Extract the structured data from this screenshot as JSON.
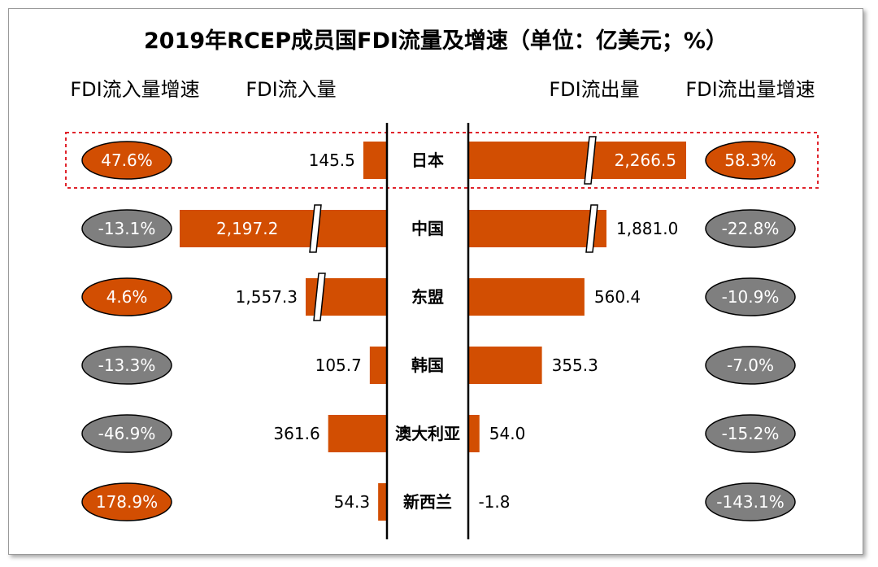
{
  "chart_data": {
    "type": "bar",
    "title": "2019年RCEP成员国FDI流量及增速（单位：亿美元；%）",
    "column_headers": {
      "inflow_growth": "FDI流入量增速",
      "inflow": "FDI流入量",
      "outflow": "FDI流出量",
      "outflow_growth": "FDI流出量增速"
    },
    "categories": [
      "日本",
      "中国",
      "东盟",
      "韩国",
      "澳大利亚",
      "新西兰"
    ],
    "series": [
      {
        "name": "FDI流入量",
        "values": [
          145.5,
          2197.2,
          1557.3,
          105.7,
          361.6,
          54.3
        ],
        "labels": [
          "145.5",
          "2,197.2",
          "1,557.3",
          "105.7",
          "361.6",
          "54.3"
        ],
        "axis_break": [
          false,
          true,
          true,
          false,
          false,
          false
        ]
      },
      {
        "name": "FDI流出量",
        "values": [
          2266.5,
          1881.0,
          560.4,
          355.3,
          54.0,
          -1.8
        ],
        "labels": [
          "2,266.5",
          "1,881.0",
          "560.4",
          "355.3",
          "54.0",
          "-1.8"
        ],
        "axis_break": [
          true,
          true,
          false,
          false,
          false,
          false
        ]
      },
      {
        "name": "FDI流入量增速",
        "values": [
          47.6,
          -13.1,
          4.6,
          -13.3,
          -46.9,
          178.9
        ],
        "labels": [
          "47.6%",
          "-13.1%",
          "4.6%",
          "-13.3%",
          "-46.9%",
          "178.9%"
        ]
      },
      {
        "name": "FDI流出量增速",
        "values": [
          58.3,
          -22.8,
          -10.9,
          -7.0,
          -15.2,
          -143.1
        ],
        "labels": [
          "58.3%",
          "-22.8%",
          "-10.9%",
          "-7.0%",
          "-15.2%",
          "-143.1%"
        ]
      }
    ],
    "highlighted_category": "日本",
    "colors": {
      "bar": "#d24e02",
      "positive": "#d24e02",
      "negative": "#7f7f7f",
      "highlight_border": "#e0242c",
      "axis": "#000000"
    }
  }
}
